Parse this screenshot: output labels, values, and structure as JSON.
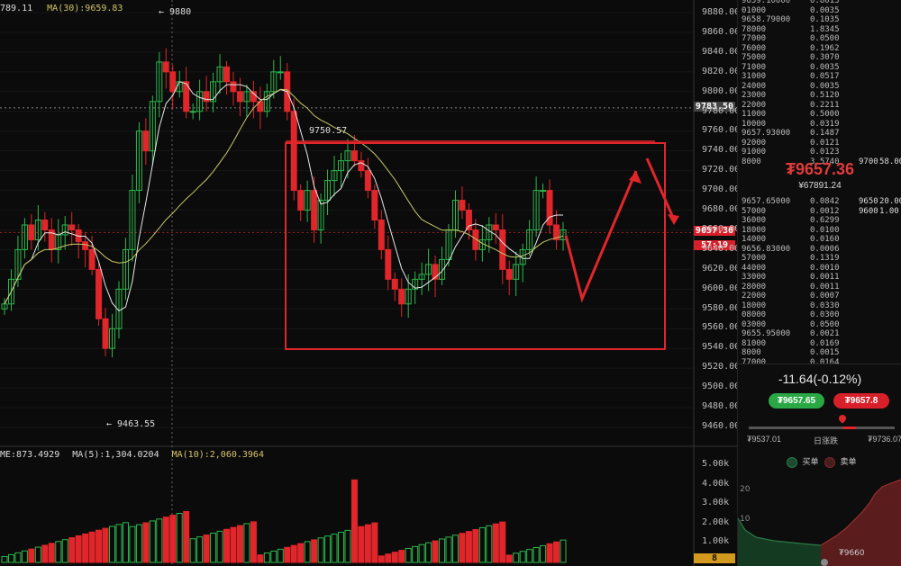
{
  "header": {
    "ma_last": "789.11",
    "ma30": "MA(30):9659.83"
  },
  "price_axis": [
    "9880.00",
    "9860.00",
    "9840.00",
    "9820.00",
    "9800.00",
    "9780.00",
    "9760.00",
    "9740.00",
    "9720.00",
    "9700.00",
    "9680.00",
    "9660.00",
    "9640.00",
    "9620.00",
    "9600.00",
    "9580.00",
    "9560.00",
    "9540.00",
    "9520.00",
    "9500.00",
    "9480.00",
    "9460.00"
  ],
  "annotations": {
    "high": "9880",
    "low": "9463.55",
    "box_top": "9750.57",
    "crosshair_price": "9783.50",
    "current_price": "9657.36",
    "countdown": "57:19"
  },
  "volume": {
    "info_vol": "ME:873.4929",
    "info_ma5": "MA(5):1,304.0204",
    "info_ma10": "MA(10):2,060.3964",
    "axis": [
      "5.00k",
      "4.00k",
      "3.00k",
      "2.00k",
      "1.00k"
    ],
    "footer_value": "8"
  },
  "orderbook": {
    "asks": [
      {
        "p": "9659.10000",
        "a": "0.8013"
      },
      {
        "p": "01000",
        "a": "0.0035"
      },
      {
        "p": "9658.79000",
        "a": "0.1035"
      },
      {
        "p": "78000",
        "a": "1.8345"
      },
      {
        "p": "77000",
        "a": "0.0500"
      },
      {
        "p": "76000",
        "a": "0.1962"
      },
      {
        "p": "75000",
        "a": "0.3070"
      },
      {
        "p": "71000",
        "a": "0.0035"
      },
      {
        "p": "31000",
        "a": "0.0517"
      },
      {
        "p": "24000",
        "a": "0.0035"
      },
      {
        "p": "23000",
        "a": "0.5120"
      },
      {
        "p": "22000",
        "a": "0.2211"
      },
      {
        "p": "11000",
        "a": "0.5000"
      },
      {
        "p": "10000",
        "a": "0.0319"
      },
      {
        "p": "9657.93000",
        "a": "0.1487"
      },
      {
        "p": "92000",
        "a": "0.0121"
      },
      {
        "p": "91000",
        "a": "0.0123"
      },
      {
        "p": "8000",
        "a": "3.5740",
        "x": "9700",
        "y": "58.00"
      }
    ],
    "last_price": "₮9657.36",
    "last_cny": "¥67891.24",
    "bids": [
      {
        "p": "9657.65000",
        "a": "0.0842",
        "x": "9650",
        "y": "20.00"
      },
      {
        "p": "57000",
        "a": "0.0012",
        "x": "9600",
        "y": "1.00"
      },
      {
        "p": "36000",
        "a": "0.6299"
      },
      {
        "p": "18000",
        "a": "0.0100"
      },
      {
        "p": "14000",
        "a": "0.0160"
      },
      {
        "p": "9656.83000",
        "a": "0.0006"
      },
      {
        "p": "57000",
        "a": "0.1319"
      },
      {
        "p": "44000",
        "a": "0.0010"
      },
      {
        "p": "33000",
        "a": "0.0011"
      },
      {
        "p": "28000",
        "a": "0.0011"
      },
      {
        "p": "22000",
        "a": "0.0007"
      },
      {
        "p": "18000",
        "a": "0.0330"
      },
      {
        "p": "08000",
        "a": "0.0300"
      },
      {
        "p": "03000",
        "a": "0.0500"
      },
      {
        "p": "9655.95000",
        "a": "0.0021"
      },
      {
        "p": "81000",
        "a": "0.0169"
      },
      {
        "p": "8000",
        "a": "0.0015"
      },
      {
        "p": "77000",
        "a": "0.0164"
      }
    ]
  },
  "ticker": {
    "change": "-11.64(-0.12%)",
    "buy_price": "₮9657.65",
    "sell_price": "₮9657.8",
    "day_low": "₮9537.01",
    "range_label": "日涨跌",
    "day_high": "₮9736.07",
    "legend_buy": "买单",
    "legend_sell": "卖单"
  },
  "depth": {
    "y_labels": [
      "20",
      "10"
    ],
    "x_label": "₮9660"
  },
  "colors": {
    "up": "#2db84d",
    "down": "#e0262a",
    "ma_white": "#e8e8e8",
    "ma_yellow": "#c8c86a",
    "accent": "#e0262a",
    "bg": "#0b0b0b"
  }
}
